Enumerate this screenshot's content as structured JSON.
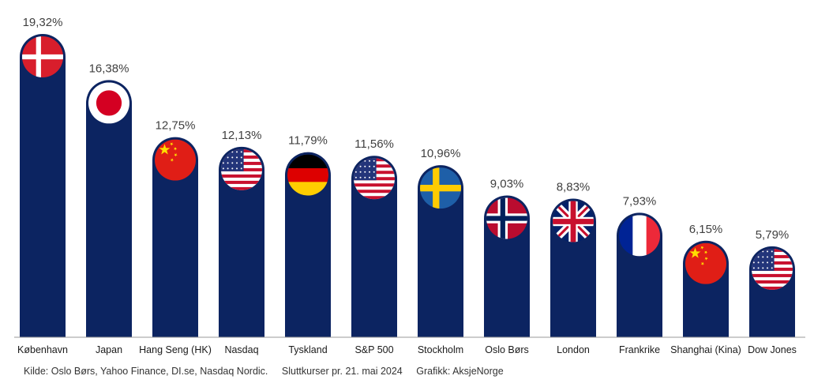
{
  "chart_data": {
    "type": "bar",
    "categories": [
      "København",
      "Japan",
      "Hang Seng (HK)",
      "Nasdaq",
      "Tyskland",
      "S&P 500",
      "Stockholm",
      "Oslo Børs",
      "London",
      "Frankrike",
      "Shanghai (Kina)",
      "Dow Jones"
    ],
    "values": [
      19.32,
      16.38,
      12.75,
      12.13,
      11.79,
      11.56,
      10.96,
      9.03,
      8.83,
      7.93,
      6.15,
      5.79
    ],
    "value_labels": [
      "19,32%",
      "16,38%",
      "12,75%",
      "12,13%",
      "11,79%",
      "11,56%",
      "10,96%",
      "9,03%",
      "8,83%",
      "7,93%",
      "6,15%",
      "5,79%"
    ],
    "flags": [
      "denmark-flag",
      "japan-flag",
      "china-flag",
      "usa-flag",
      "germany-flag",
      "usa-flag",
      "sweden-flag",
      "norway-flag",
      "uk-flag",
      "france-flag",
      "china-flag",
      "usa-flag"
    ],
    "bar_color": "#0c2461",
    "grid": false,
    "legend": "none"
  },
  "footer": {
    "source": "Kilde: Oslo Børs, Yahoo Finance, DI.se, Nasdaq Nordic.",
    "date": "Sluttkurser pr. 21. mai 2024",
    "credit": "Grafikk: AksjeNorge"
  },
  "colors": {
    "bar": "#0c2461",
    "axis": "#9a9a9a",
    "label": "#404040"
  }
}
